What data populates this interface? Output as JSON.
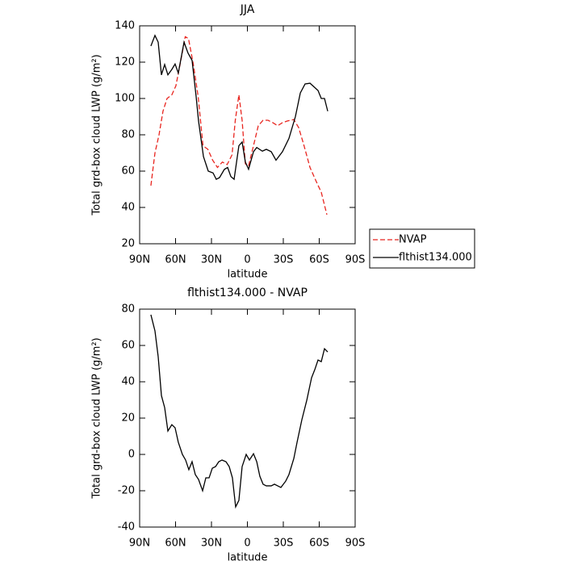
{
  "chart_data": [
    {
      "type": "line",
      "title": "JJA",
      "xlabel": "latitude",
      "ylabel": "Total grd-box cloud LWP (g/m²)",
      "xlim": [
        90,
        -90
      ],
      "xticks": [
        {
          "value": 90,
          "label": "90N"
        },
        {
          "value": 60,
          "label": "60N"
        },
        {
          "value": 30,
          "label": "30N"
        },
        0,
        {
          "value": -30,
          "label": "30S"
        },
        {
          "value": -60,
          "label": "60S"
        },
        {
          "value": -90,
          "label": "90S"
        }
      ],
      "ylim": [
        20,
        140
      ],
      "yticks": [
        20,
        40,
        60,
        80,
        100,
        120,
        140
      ],
      "legend": "right",
      "series": [
        {
          "name": "NVAP",
          "color": "#e8251f",
          "dash": true,
          "x": [
            80.6,
            77.2,
            73.8,
            70.5,
            67.1,
            63.1,
            59.7,
            55.6,
            51.9,
            49.2,
            45.2,
            41.1,
            37.1,
            33.0,
            29.0,
            25.0,
            20.9,
            16.9,
            12.8,
            10.1,
            7.1,
            4.4,
            1.7,
            -1.0,
            -5.1,
            -9.1,
            -13.1,
            -17.2,
            -21.2,
            -25.3,
            -29.3,
            -33.4,
            -38.8,
            -42.8,
            -46.9,
            -52.3,
            -57.7,
            -61.7,
            -66.4
          ],
          "values": [
            52,
            70,
            80,
            93,
            100,
            102,
            107,
            121,
            134,
            133,
            119,
            101,
            74,
            72,
            66,
            62,
            65,
            63.6,
            69,
            88,
            102,
            88,
            64,
            63,
            74,
            85,
            88,
            88,
            86.7,
            85,
            86.7,
            87.6,
            88.4,
            84,
            75,
            62,
            54,
            48.4,
            36
          ]
        },
        {
          "name": "flthist134.000",
          "color": "#000000",
          "dash": false,
          "x": [
            80.6,
            77.2,
            74.5,
            71.8,
            69.1,
            66.4,
            63.1,
            60.4,
            57.7,
            52.9,
            49.6,
            46.2,
            42.8,
            40.8,
            36.7,
            32.7,
            28.7,
            26.0,
            23.3,
            19.2,
            16.5,
            13.8,
            11.1,
            7.1,
            4.4,
            1.7,
            -1.0,
            -5.1,
            -7.8,
            -12.5,
            -15.8,
            -19.9,
            -23.9,
            -29.3,
            -34.7,
            -40.1,
            -44.2,
            -48.2,
            -52.3,
            -56.3,
            -59.0,
            -61.7,
            -64.4,
            -67.1
          ],
          "values": [
            128.9,
            134.7,
            131,
            113,
            118.7,
            113,
            116,
            119,
            114,
            131,
            125,
            121,
            101,
            87.6,
            68,
            60,
            59,
            55.5,
            56.4,
            61,
            62,
            57,
            55.5,
            74,
            76,
            65,
            61,
            70.7,
            73,
            71,
            72,
            70.7,
            66,
            70.7,
            78,
            90,
            103,
            108,
            108.4,
            106,
            104.4,
            100,
            100,
            93
          ]
        }
      ]
    },
    {
      "type": "line",
      "title": "flthist134.000 - NVAP",
      "xlabel": "latitude",
      "ylabel": "Total grd-box cloud LWP (g/m²)",
      "xlim": [
        90,
        -90
      ],
      "xticks": [
        {
          "value": 90,
          "label": "90N"
        },
        {
          "value": 60,
          "label": "60N"
        },
        {
          "value": 30,
          "label": "30N"
        },
        0,
        {
          "value": -30,
          "label": "30S"
        },
        {
          "value": -60,
          "label": "60S"
        },
        {
          "value": -90,
          "label": "90S"
        }
      ],
      "ylim": [
        -40,
        80
      ],
      "yticks": [
        -40,
        -20,
        0,
        20,
        40,
        60,
        80
      ],
      "series": [
        {
          "color": "#000000",
          "dash": false,
          "x": [
            80.6,
            77.2,
            74.5,
            71.8,
            69.1,
            66.4,
            63.1,
            60.4,
            57.7,
            54.3,
            51.6,
            48.9,
            46.2,
            43.5,
            40.8,
            37.4,
            34.7,
            32.0,
            29.3,
            26.6,
            23.9,
            21.2,
            17.9,
            15.2,
            12.5,
            9.8,
            7.1,
            4.4,
            1.0,
            -1.7,
            -5.1,
            -7.8,
            -10.4,
            -13.1,
            -15.8,
            -19.9,
            -22.6,
            -25.3,
            -28.0,
            -32.0,
            -34.7,
            -38.8,
            -41.5,
            -45.5,
            -49.6,
            -53.6,
            -56.3,
            -59.0,
            -61.7,
            -64.4,
            -67.1
          ],
          "values": [
            76.9,
            68,
            53.8,
            32.4,
            25.8,
            12.9,
            16.4,
            14.7,
            6.7,
            0,
            -3.1,
            -8.4,
            -4,
            -11.1,
            -13.8,
            -20,
            -12.9,
            -12.9,
            -7.6,
            -6.7,
            -4,
            -3.1,
            -4,
            -6.7,
            -12.9,
            -28.9,
            -25.3,
            -6.7,
            0,
            -3.1,
            0.4,
            -4,
            -12,
            -16.4,
            -17.3,
            -17.3,
            -16.4,
            -17.3,
            -18.2,
            -14.7,
            -11.1,
            -2.2,
            6.7,
            19.1,
            29.8,
            42.2,
            46.7,
            52,
            51.1,
            58.2,
            56.4
          ]
        }
      ]
    }
  ]
}
